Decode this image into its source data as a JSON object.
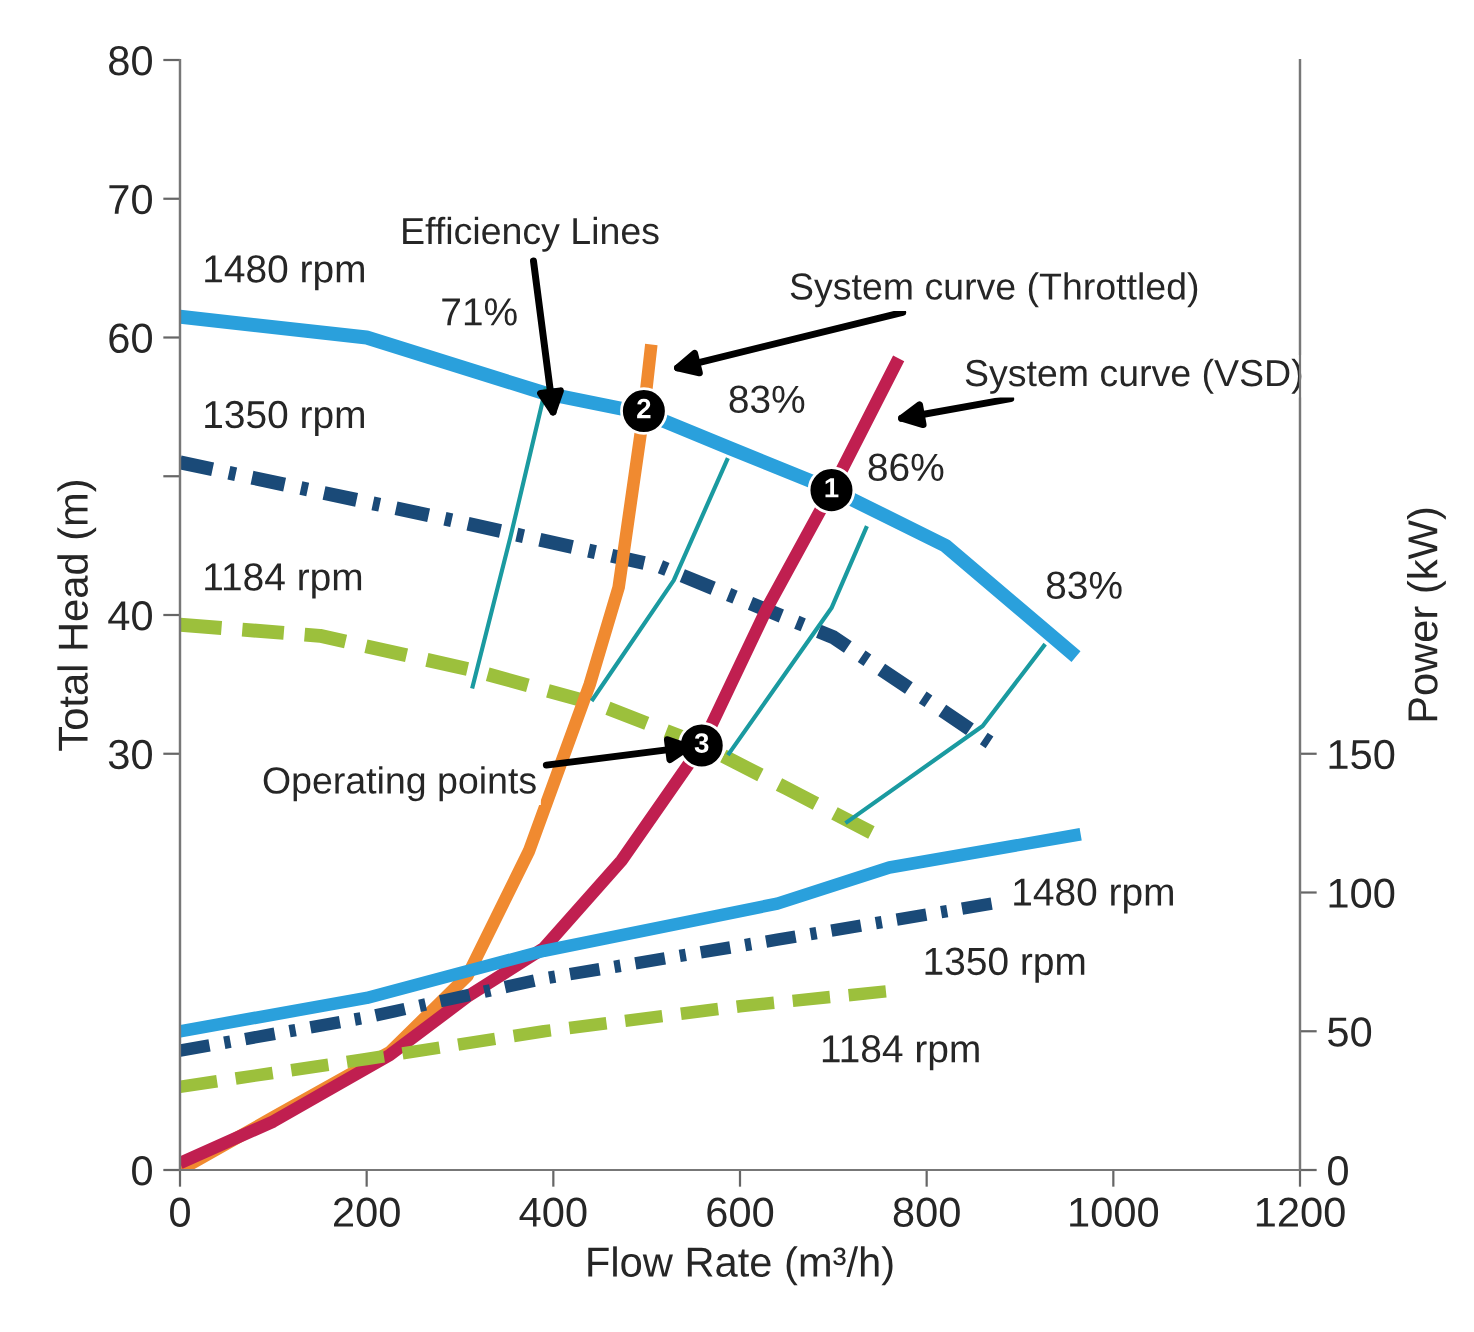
{
  "chart_data": {
    "type": "line",
    "xlabel": "Flow Rate (m³/h)",
    "ylabel": "Total Head (m)",
    "y2label": "Power (kW)",
    "xlim": [
      0,
      1200
    ],
    "xticks": [
      0,
      200,
      400,
      600,
      800,
      1000,
      1200
    ],
    "ylim": [
      0,
      80
    ],
    "yticks": [
      0,
      30,
      40,
      {
        "value": 50,
        "label": null
      },
      60,
      70,
      80
    ],
    "y2lim": [
      0,
      400
    ],
    "y2ticks": [
      0,
      50,
      100,
      150
    ],
    "grid": false,
    "legend": false,
    "series": [
      {
        "name": "1480 rpm",
        "color": "#2aa0dc",
        "line_style": "solid",
        "x": [
          0,
          200,
          390,
          500,
          590,
          700,
          820,
          960
        ],
        "values": [
          61.5,
          60,
          56,
          54.5,
          52,
          49,
          45,
          37
        ]
      },
      {
        "name": "1350 rpm",
        "color": "#1a4a78",
        "line_style": "dashdot",
        "x": [
          0,
          280,
          514,
          700,
          870
        ],
        "values": [
          51,
          47,
          43.5,
          38.4,
          30.7
        ]
      },
      {
        "name": "1184 rpm",
        "color": "#9cc03c",
        "line_style": "dashed",
        "x": [
          0,
          150,
          315,
          450,
          557,
          650,
          750
        ],
        "values": [
          39.3,
          38.5,
          36,
          33.5,
          30.7,
          27.5,
          24
        ]
      },
      {
        "name": "1480 rpm",
        "axis": "y2",
        "color": "#2aa0dc",
        "line_style": "solid",
        "x": [
          0,
          200,
          390,
          640,
          760,
          965
        ],
        "values": [
          50,
          62,
          79,
          96,
          109,
          121
        ]
      },
      {
        "name": "1350 rpm",
        "axis": "y2",
        "color": "#1a4a78",
        "line_style": "dashdot",
        "x": [
          0,
          200,
          390,
          640,
          870
        ],
        "values": [
          43,
          55,
          69,
          83,
          96
        ]
      },
      {
        "name": "1184 rpm",
        "axis": "y2",
        "color": "#9cc03c",
        "line_style": "dashed",
        "x": [
          0,
          200,
          390,
          600,
          760
        ],
        "values": [
          30,
          40,
          50,
          59,
          64.5
        ]
      },
      {
        "color": "#f08a30",
        "line_style": "solid",
        "x": [
          0,
          100,
          225,
          308,
          374,
          439,
          470,
          497,
          505
        ],
        "values": [
          0,
          3.8,
          8.5,
          14,
          23,
          35,
          42,
          54.7,
          59.5
        ]
      },
      {
        "color": "#c01f50",
        "line_style": "solid",
        "x": [
          0,
          100,
          225,
          308,
          390,
          473,
          559,
          629,
          698,
          770
        ],
        "values": [
          0.5,
          3.5,
          8.3,
          12.5,
          16,
          22.3,
          30.6,
          40.5,
          49,
          58.5
        ]
      },
      {
        "name": "71%",
        "color": "#1a9aa0",
        "line_style": "solid",
        "x": [
          392,
          354,
          313
        ],
        "values": [
          56.4,
          45.6,
          34.7
        ]
      },
      {
        "name": "83%",
        "color": "#1a9aa0",
        "line_style": "solid",
        "x": [
          587,
          529,
          441
        ],
        "values": [
          51.3,
          42.5,
          33.8
        ]
      },
      {
        "name": "86%",
        "color": "#1a9aa0",
        "line_style": "solid",
        "x": [
          736,
          698,
          587
        ],
        "values": [
          46.4,
          40.5,
          29.9
        ]
      },
      {
        "name": "83%",
        "color": "#1a9aa0",
        "line_style": "solid",
        "x": [
          927,
          860,
          713
        ],
        "values": [
          37.9,
          32,
          25
        ]
      },
      {
        "type": "scatter",
        "color": "#000000",
        "marker": "circle",
        "x": [
          698,
          497,
          559
        ],
        "values": [
          49,
          54.7,
          30.6
        ]
      }
    ],
    "annotations": [
      "Efficiency Lines",
      "System curve (Throttled)",
      "System curve (VSD)",
      {
        "text": "Operating points",
        "x": 559,
        "y": 30.6
      },
      {
        "text": "1",
        "x": 698,
        "y": 49
      },
      {
        "text": "2",
        "x": 497,
        "y": 54.7
      },
      {
        "text": "3",
        "x": 559,
        "y": 30.6
      }
    ]
  }
}
